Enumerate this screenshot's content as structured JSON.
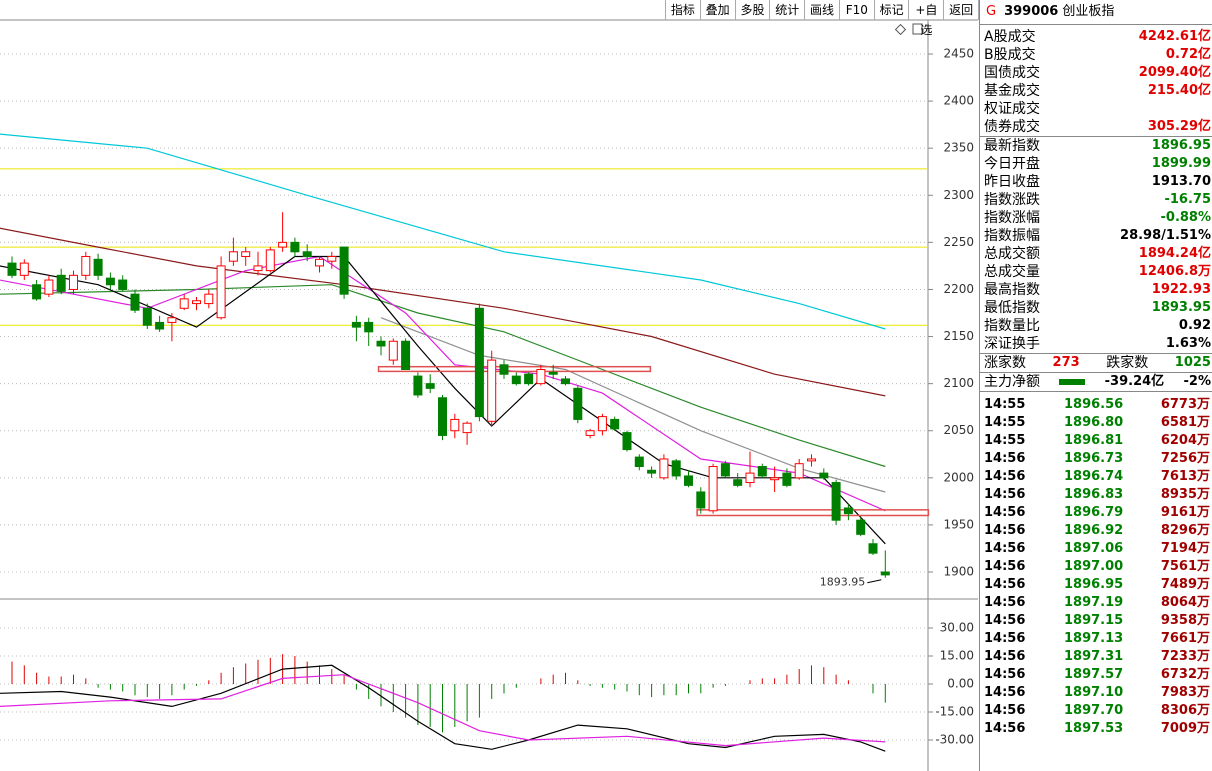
{
  "toolbar": [
    "指标",
    "叠加",
    "多股",
    "统计",
    "画线",
    "F10",
    "标记",
    "+自选",
    "返回"
  ],
  "quote": {
    "flag": "G",
    "code": "399006",
    "name": "创业板指",
    "turnover": [
      {
        "label": "A股成交",
        "value": "4242.61亿",
        "color": "#e00000"
      },
      {
        "label": "B股成交",
        "value": "0.72亿",
        "color": "#e00000"
      },
      {
        "label": "国债成交",
        "value": "2099.40亿",
        "color": "#e00000"
      },
      {
        "label": "基金成交",
        "value": "215.40亿",
        "color": "#e00000"
      },
      {
        "label": "权证成交"
      },
      {
        "label": "债券成交",
        "value": "305.29亿",
        "color": "#e00000"
      }
    ],
    "index": [
      {
        "label": "最新指数",
        "value": "1896.95",
        "color": "#008000"
      },
      {
        "label": "今日开盘",
        "value": "1899.99",
        "color": "#008000"
      },
      {
        "label": "昨日收盘",
        "value": "1913.70",
        "color": "#000000"
      },
      {
        "label": "指数涨跌",
        "value": "-16.75",
        "color": "#008000"
      },
      {
        "label": "指数涨幅",
        "value": "-0.88%",
        "color": "#008000"
      },
      {
        "label": "指数振幅",
        "value": "28.98/1.51%",
        "color": "#000000"
      },
      {
        "label": "总成交额",
        "value": "1894.24亿",
        "color": "#e00000"
      },
      {
        "label": "总成交量",
        "value": "12406.8万",
        "color": "#e00000"
      },
      {
        "label": "最高指数",
        "value": "1922.93",
        "color": "#e00000"
      },
      {
        "label": "最低指数",
        "value": "1893.95",
        "color": "#008000"
      },
      {
        "label": "指数量比",
        "value": "0.92",
        "color": "#000000"
      },
      {
        "label": "深证换手",
        "value": "1.63%",
        "color": "#000000"
      }
    ],
    "breadth": {
      "up_label": "涨家数",
      "up": "273",
      "down_label": "跌家数",
      "down": "1025"
    },
    "main_flow": {
      "label": "主力净额",
      "value": "-39.24亿",
      "pct": "-2%"
    },
    "ticks": [
      [
        "14:55",
        "1896.56",
        "6773万"
      ],
      [
        "14:55",
        "1896.80",
        "6581万"
      ],
      [
        "14:55",
        "1896.81",
        "6204万"
      ],
      [
        "14:56",
        "1896.73",
        "7256万"
      ],
      [
        "14:56",
        "1896.74",
        "7613万"
      ],
      [
        "14:56",
        "1896.83",
        "8935万"
      ],
      [
        "14:56",
        "1896.79",
        "9161万"
      ],
      [
        "14:56",
        "1896.92",
        "8296万"
      ],
      [
        "14:56",
        "1897.06",
        "7194万"
      ],
      [
        "14:56",
        "1897.00",
        "7561万"
      ],
      [
        "14:56",
        "1896.95",
        "7489万"
      ],
      [
        "14:56",
        "1897.19",
        "8064万"
      ],
      [
        "14:56",
        "1897.15",
        "9358万"
      ],
      [
        "14:56",
        "1897.13",
        "7661万"
      ],
      [
        "14:56",
        "1897.31",
        "7233万"
      ],
      [
        "14:56",
        "1897.57",
        "6732万"
      ],
      [
        "14:56",
        "1897.10",
        "7983万"
      ],
      [
        "14:56",
        "1897.70",
        "8306万"
      ],
      [
        "14:56",
        "1897.53",
        "7009万"
      ]
    ]
  },
  "chart_data": [
    {
      "type": "candlestick",
      "ylim": [
        1872.4,
        2486.1
      ],
      "yticks": [
        1900,
        1950,
        2000,
        2050,
        2100,
        2150,
        2200,
        2250,
        2300,
        2350,
        2400,
        2450
      ],
      "grid": true,
      "up_color": "#ff0000",
      "down_color": "#008000",
      "candles": [
        [
          2228,
          2235,
          2212,
          2215
        ],
        [
          2215,
          2232,
          2210,
          2228
        ],
        [
          2205,
          2210,
          2188,
          2190
        ],
        [
          2195,
          2215,
          2192,
          2210
        ],
        [
          2215,
          2222,
          2195,
          2198
        ],
        [
          2200,
          2220,
          2195,
          2215
        ],
        [
          2215,
          2240,
          2210,
          2235
        ],
        [
          2232,
          2238,
          2210,
          2215
        ],
        [
          2212,
          2218,
          2200,
          2205
        ],
        [
          2210,
          2215,
          2198,
          2200
        ],
        [
          2195,
          2200,
          2175,
          2178
        ],
        [
          2180,
          2185,
          2158,
          2162
        ],
        [
          2165,
          2172,
          2155,
          2158
        ],
        [
          2165,
          2175,
          2145,
          2170
        ],
        [
          2180,
          2195,
          2178,
          2190
        ],
        [
          2185,
          2192,
          2178,
          2188
        ],
        [
          2185,
          2200,
          2180,
          2195
        ],
        [
          2170,
          2235,
          2168,
          2225
        ],
        [
          2230,
          2255,
          2225,
          2240
        ],
        [
          2235,
          2245,
          2225,
          2240
        ],
        [
          2220,
          2240,
          2215,
          2225
        ],
        [
          2220,
          2245,
          2218,
          2242
        ],
        [
          2245,
          2282,
          2240,
          2250
        ],
        [
          2250,
          2255,
          2235,
          2240
        ],
        [
          2240,
          2248,
          2230,
          2235
        ],
        [
          2225,
          2235,
          2218,
          2232
        ],
        [
          2230,
          2240,
          2222,
          2235
        ],
        [
          2245,
          2245,
          2190,
          2195
        ],
        [
          2165,
          2172,
          2145,
          2160
        ],
        [
          2165,
          2170,
          2140,
          2155
        ],
        [
          2145,
          2150,
          2130,
          2140
        ],
        [
          2125,
          2148,
          2120,
          2145
        ],
        [
          2145,
          2148,
          2115,
          2115
        ],
        [
          2108,
          2112,
          2085,
          2088
        ],
        [
          2100,
          2110,
          2090,
          2095
        ],
        [
          2085,
          2088,
          2040,
          2045
        ],
        [
          2050,
          2068,
          2042,
          2062
        ],
        [
          2048,
          2060,
          2035,
          2058
        ],
        [
          2180,
          2185,
          2060,
          2065
        ],
        [
          2060,
          2135,
          2055,
          2125
        ],
        [
          2120,
          2125,
          2105,
          2110
        ],
        [
          2108,
          2112,
          2098,
          2100
        ],
        [
          2110,
          2112,
          2098,
          2100
        ],
        [
          2100,
          2120,
          2098,
          2115
        ],
        [
          2112,
          2120,
          2105,
          2110
        ],
        [
          2105,
          2108,
          2098,
          2100
        ],
        [
          2095,
          2098,
          2058,
          2062
        ],
        [
          2045,
          2052,
          2042,
          2050
        ],
        [
          2050,
          2068,
          2045,
          2065
        ],
        [
          2062,
          2065,
          2050,
          2052
        ],
        [
          2048,
          2050,
          2028,
          2030
        ],
        [
          2022,
          2025,
          2008,
          2012
        ],
        [
          2008,
          2012,
          2000,
          2005
        ],
        [
          2000,
          2025,
          1998,
          2020
        ],
        [
          2018,
          2020,
          1998,
          2002
        ],
        [
          2002,
          2008,
          1990,
          1992
        ],
        [
          1985,
          1990,
          1962,
          1968
        ],
        [
          1965,
          2015,
          1962,
          2012
        ],
        [
          2015,
          2018,
          2000,
          2002
        ],
        [
          1998,
          2005,
          1990,
          1992
        ],
        [
          1995,
          2028,
          1990,
          2005
        ],
        [
          2012,
          2015,
          2000,
          2002
        ],
        [
          1998,
          2012,
          1985,
          2000
        ],
        [
          2005,
          2010,
          1990,
          1992
        ],
        [
          2000,
          2020,
          1998,
          2015
        ],
        [
          2018,
          2025,
          2012,
          2020
        ],
        [
          2005,
          2010,
          1998,
          2000
        ],
        [
          1995,
          1998,
          1950,
          1955
        ],
        [
          1968,
          1972,
          1955,
          1962
        ],
        [
          1955,
          1958,
          1938,
          1940
        ],
        [
          1930,
          1935,
          1918,
          1920
        ],
        [
          1899.99,
          1922.93,
          1893.95,
          1896.95
        ]
      ],
      "lines": [
        {
          "color": "#00c8d8",
          "x": [
            -1,
            11,
            24,
            40,
            56,
            64,
            71
          ],
          "values": [
            2365,
            2350,
            2300,
            2240,
            2210,
            2185,
            2158
          ]
        },
        {
          "color": "#8b1a1a",
          "x": [
            -1,
            7,
            15,
            27,
            40,
            52,
            62,
            71
          ],
          "values": [
            2265,
            2245,
            2225,
            2205,
            2180,
            2150,
            2110,
            2087
          ]
        },
        {
          "color": "#2a8a2a",
          "x": [
            -1,
            15,
            26,
            33,
            40,
            48,
            56,
            64,
            71
          ],
          "values": [
            2195,
            2200,
            2205,
            2175,
            2155,
            2115,
            2075,
            2040,
            2012
          ]
        },
        {
          "color": "#909090",
          "x": [
            30,
            38,
            45,
            56,
            64,
            71
          ],
          "values": [
            2170,
            2130,
            2115,
            2050,
            2010,
            1985
          ]
        },
        {
          "color": "#e020e0",
          "x": [
            -1,
            11,
            19,
            25,
            32,
            36,
            43,
            48,
            56,
            64,
            71
          ],
          "values": [
            2210,
            2180,
            2220,
            2235,
            2175,
            2120,
            2110,
            2090,
            2020,
            2005,
            1965
          ]
        },
        {
          "color": "#000000",
          "x": [
            -1,
            7,
            15,
            23,
            27,
            33,
            36,
            39,
            43,
            48,
            53,
            57,
            66,
            71
          ],
          "values": [
            2225,
            2205,
            2160,
            2235,
            2235,
            2140,
            2095,
            2055,
            2105,
            2060,
            2015,
            2000,
            2000,
            1930
          ]
        }
      ],
      "hlines": {
        "color": "#e8e800",
        "values": [
          2328,
          2245,
          2162
        ]
      },
      "zones": [
        {
          "color": "#e05050",
          "x": [
            29.8,
            51.9
          ],
          "values": [
            2113,
            2118
          ]
        },
        {
          "color": "#e05050",
          "x": [
            55.7,
            74.5
          ],
          "values": [
            1960,
            1966
          ]
        }
      ]
    },
    {
      "type": "macd",
      "ylim": [
        -46.6,
        45
      ],
      "yticks": [
        {
          "value": 30,
          "label": "30.00"
        },
        {
          "value": 15,
          "label": "15.00"
        },
        {
          "value": 0,
          "label": "0.00"
        },
        {
          "value": -15,
          "label": "-15.00"
        },
        {
          "value": -30,
          "label": "-30.00"
        }
      ],
      "up_color": "#e00000",
      "down_color": "#008000",
      "values": [
        12,
        10,
        6,
        4,
        4,
        5,
        3,
        -2,
        -3,
        -4,
        -6,
        -7,
        -8,
        -6,
        -3,
        -1,
        2,
        6,
        9,
        11,
        13,
        14,
        16,
        15,
        12,
        10,
        8,
        5,
        -3,
        -8,
        -12,
        -15,
        -18,
        -22,
        -23,
        -26,
        -23,
        -20,
        -18,
        -8,
        -5,
        -2,
        0,
        3,
        5,
        6,
        2,
        -1,
        -2,
        -3,
        -4,
        -6,
        -7,
        -6,
        -6,
        -5,
        -5,
        -2,
        -1,
        0,
        2,
        3,
        3,
        5,
        8,
        10,
        9,
        5,
        2,
        0,
        -5,
        -10
      ],
      "lines": [
        {
          "color": "#000000",
          "x": [
            -1,
            4,
            8,
            13,
            17,
            22,
            26,
            29,
            33,
            36,
            39,
            42,
            46,
            50,
            55,
            58,
            62,
            66,
            69,
            71
          ],
          "values": [
            -5,
            -4,
            -7,
            -12,
            -5,
            8,
            10,
            -2,
            -20,
            -32,
            -35,
            -30,
            -22,
            -24,
            -32,
            -34,
            -28,
            -27,
            -31,
            -36
          ]
        },
        {
          "color": "#e020e0",
          "x": [
            -1,
            8,
            17,
            22,
            27,
            33,
            38,
            42,
            50,
            58,
            66,
            71
          ],
          "values": [
            -12,
            -9,
            -8,
            3,
            5,
            -10,
            -25,
            -30,
            -28,
            -33,
            -29,
            -31
          ]
        }
      ]
    }
  ]
}
